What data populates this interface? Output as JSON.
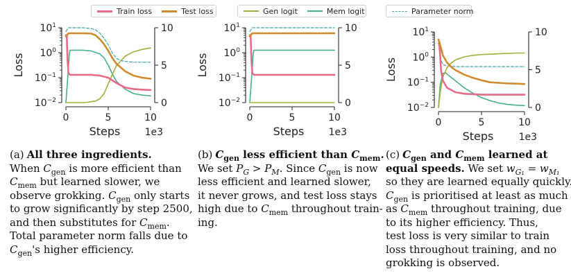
{
  "legend_groups": [
    {
      "items": [
        {
          "label": "Train loss",
          "color": "#e86a8a",
          "style": "solid"
        },
        {
          "label": "Test loss",
          "color": "#d08a2e",
          "style": "solid"
        }
      ]
    },
    {
      "items": [
        {
          "label": "Gen logit",
          "color": "#a3ad3c",
          "style": "solid"
        },
        {
          "label": "Mem logit",
          "color": "#45b384",
          "style": "solid"
        }
      ]
    },
    {
      "items": [
        {
          "label": "Parameter norm",
          "color": "#3ba7a8",
          "style": "dashed"
        }
      ]
    }
  ],
  "chart_data": [
    {
      "type": "line",
      "xlabel": "Steps",
      "x_multiplier": "1e3",
      "ylabel": "Loss",
      "xlim": [
        0,
        10000
      ],
      "xticks": [
        "0",
        "5",
        "10"
      ],
      "yscale_left": "log",
      "ylim_left": [
        0.01,
        10
      ],
      "yticks_left": [
        "10^-2",
        "10^-1",
        "10^0",
        "10^1"
      ],
      "ylim_right": [
        0,
        10
      ],
      "yticks_right": [
        "0",
        "5",
        "10"
      ],
      "series": [
        {
          "name": "Train loss",
          "axis": "left",
          "x": [
            0,
            100,
            200,
            300,
            500,
            1000,
            2000,
            3000,
            4000,
            5000,
            6000,
            7000,
            8000,
            9000,
            10000
          ],
          "values": [
            5.0,
            5.0,
            0.5,
            0.15,
            0.13,
            0.13,
            0.13,
            0.13,
            0.12,
            0.1,
            0.06,
            0.04,
            0.035,
            0.033,
            0.032
          ]
        },
        {
          "name": "Test loss",
          "axis": "left",
          "x": [
            0,
            300,
            1000,
            2000,
            3000,
            3500,
            4000,
            4500,
            5000,
            5500,
            6000,
            7000,
            8000,
            9000,
            10000
          ],
          "values": [
            4.5,
            6.0,
            6.0,
            6.0,
            5.8,
            5.0,
            3.5,
            2.2,
            1.2,
            0.6,
            0.35,
            0.18,
            0.12,
            0.1,
            0.09
          ]
        },
        {
          "name": "Gen logit",
          "axis": "right",
          "x": [
            0,
            1000,
            2000,
            2500,
            3500,
            4000,
            4500,
            5000,
            5500,
            6000,
            7000,
            8000,
            9000,
            10000
          ],
          "values": [
            0,
            0,
            0,
            0.05,
            0.2,
            0.5,
            1.2,
            2.5,
            3.8,
            5.0,
            6.2,
            6.8,
            7.1,
            7.3
          ]
        },
        {
          "name": "Mem logit",
          "axis": "right",
          "x": [
            0,
            200,
            400,
            500,
            1000,
            2000,
            3000,
            4000,
            4500,
            5000,
            5500,
            6000,
            7000,
            8000,
            9000,
            10000
          ],
          "values": [
            0,
            3.0,
            6.5,
            7.0,
            7.0,
            7.0,
            6.9,
            6.5,
            6.0,
            5.0,
            3.8,
            2.8,
            1.8,
            1.2,
            1.0,
            0.9
          ]
        },
        {
          "name": "Parameter norm",
          "axis": "right",
          "x": [
            0,
            300,
            1000,
            2000,
            3000,
            3500,
            4000,
            4500,
            5000,
            5500,
            6000,
            6500,
            7000,
            8000,
            9000,
            10000
          ],
          "values": [
            9.5,
            10.0,
            10.0,
            10.0,
            9.9,
            9.7,
            9.3,
            8.6,
            7.7,
            6.6,
            5.9,
            5.6,
            5.5,
            5.4,
            5.4,
            5.4
          ]
        }
      ]
    },
    {
      "type": "line",
      "xlabel": "Steps",
      "x_multiplier": "1e3",
      "ylabel": "Loss",
      "xlim": [
        0,
        10000
      ],
      "xticks": [
        "0",
        "5",
        "10"
      ],
      "yscale_left": "log",
      "ylim_left": [
        0.01,
        10
      ],
      "yticks_left": [
        "10^-2",
        "10^-1",
        "10^0",
        "10^1"
      ],
      "ylim_right": [
        0,
        10
      ],
      "yticks_right": [
        "0",
        "5",
        "10"
      ],
      "series": [
        {
          "name": "Train loss",
          "axis": "left",
          "x": [
            0,
            100,
            200,
            300,
            500,
            1000,
            5000,
            10000
          ],
          "values": [
            5.0,
            5.0,
            0.5,
            0.15,
            0.13,
            0.13,
            0.13,
            0.13
          ]
        },
        {
          "name": "Test loss",
          "axis": "left",
          "x": [
            0,
            300,
            1000,
            5000,
            10000
          ],
          "values": [
            4.5,
            6.0,
            6.0,
            6.0,
            6.0
          ]
        },
        {
          "name": "Gen logit",
          "axis": "right",
          "x": [
            0,
            5000,
            10000
          ],
          "values": [
            0,
            0,
            0
          ]
        },
        {
          "name": "Mem logit",
          "axis": "right",
          "x": [
            0,
            200,
            400,
            500,
            1000,
            5000,
            10000
          ],
          "values": [
            0,
            3.0,
            6.5,
            7.0,
            7.0,
            7.0,
            7.0
          ]
        },
        {
          "name": "Parameter norm",
          "axis": "right",
          "x": [
            0,
            300,
            1000,
            5000,
            10000
          ],
          "values": [
            9.5,
            10.0,
            10.0,
            10.0,
            10.0
          ]
        }
      ]
    },
    {
      "type": "line",
      "xlabel": "Steps",
      "x_multiplier": "1e3",
      "ylabel": "Loss",
      "xlim": [
        0,
        10000
      ],
      "xticks": [
        "0",
        "5",
        "10"
      ],
      "yscale_left": "log",
      "ylim_left": [
        0.01,
        10
      ],
      "yticks_left": [
        "10^-2",
        "10^-1",
        "10^0",
        "10^1"
      ],
      "ylim_right": [
        0,
        10
      ],
      "yticks_right": [
        "0",
        "5",
        "10"
      ],
      "series": [
        {
          "name": "Train loss",
          "axis": "left",
          "x": [
            0,
            100,
            200,
            300,
            500,
            1000,
            2000,
            3000,
            5000,
            7000,
            10000
          ],
          "values": [
            5.0,
            4.0,
            1.0,
            0.3,
            0.12,
            0.06,
            0.04,
            0.035,
            0.032,
            0.032,
            0.032
          ]
        },
        {
          "name": "Test loss",
          "axis": "left",
          "x": [
            0,
            200,
            500,
            1000,
            1500,
            2000,
            3000,
            4000,
            5000,
            6000,
            7000,
            8000,
            9000,
            10000
          ],
          "values": [
            5.0,
            3.0,
            1.2,
            0.6,
            0.4,
            0.3,
            0.2,
            0.15,
            0.12,
            0.1,
            0.095,
            0.09,
            0.088,
            0.085
          ]
        },
        {
          "name": "Gen logit",
          "axis": "right",
          "x": [
            0,
            200,
            500,
            1000,
            1500,
            2000,
            3000,
            4000,
            5000,
            6000,
            7000,
            8000,
            9000,
            10000
          ],
          "values": [
            0,
            2.0,
            4.0,
            5.3,
            5.9,
            6.3,
            6.7,
            6.9,
            7.0,
            7.05,
            7.1,
            7.15,
            7.2,
            7.2
          ]
        },
        {
          "name": "Mem logit",
          "axis": "right",
          "x": [
            0,
            200,
            500,
            800,
            1000,
            2000,
            3000,
            4000,
            5000,
            6000,
            7000,
            8000,
            9000,
            10000
          ],
          "values": [
            0,
            3.0,
            4.5,
            4.6,
            4.4,
            3.5,
            2.6,
            1.9,
            1.3,
            0.9,
            0.6,
            0.4,
            0.3,
            0.25
          ]
        },
        {
          "name": "Parameter norm",
          "axis": "right",
          "x": [
            0,
            200,
            500,
            1000,
            2000,
            3000,
            5000,
            7000,
            10000
          ],
          "values": [
            8.5,
            6.5,
            5.7,
            5.5,
            5.4,
            5.4,
            5.4,
            5.4,
            5.4
          ]
        }
      ]
    }
  ],
  "captions": [
    {
      "tag": "(a)",
      "lines": [
        [
          {
            "t": "All three ingredients.",
            "b": true
          }
        ],
        [
          {
            "t": "When "
          },
          {
            "t": "C",
            "i": true
          },
          {
            "t": "gen",
            "sub": true
          },
          {
            "t": " is more efficient than"
          }
        ],
        [
          {
            "t": "C",
            "i": true
          },
          {
            "t": "mem",
            "sub": true
          },
          {
            "t": " but learned slower, we"
          }
        ],
        [
          {
            "t": "observe grokking. "
          },
          {
            "t": "C",
            "i": true
          },
          {
            "t": "gen",
            "sub": true
          },
          {
            "t": " only starts"
          }
        ],
        [
          {
            "t": "to grow significantly by step 2500,"
          }
        ],
        [
          {
            "t": "and then substitutes for "
          },
          {
            "t": "C",
            "i": true
          },
          {
            "t": "mem",
            "sub": true
          },
          {
            "t": "."
          }
        ],
        [
          {
            "t": "Total parameter norm falls due to"
          }
        ],
        [
          {
            "t": "C",
            "i": true
          },
          {
            "t": "gen",
            "sub": true
          },
          {
            "t": "'s higher efficiency."
          }
        ]
      ]
    },
    {
      "tag": "(b)",
      "lines": [
        [
          {
            "t": "C",
            "i": true,
            "b": true
          },
          {
            "t": "gen",
            "sub": true,
            "b": true
          },
          {
            "t": " less efficient than ",
            "b": true
          },
          {
            "t": "C",
            "i": true,
            "b": true
          },
          {
            "t": "mem",
            "sub": true,
            "b": true
          },
          {
            "t": ".",
            "b": true
          }
        ],
        [
          {
            "t": "We set "
          },
          {
            "t": "P",
            "i": true
          },
          {
            "t": "G",
            "sub": true,
            "i": true
          },
          {
            "t": " > "
          },
          {
            "t": "P",
            "i": true
          },
          {
            "t": "M",
            "sub": true,
            "i": true
          },
          {
            "t": ". Since "
          },
          {
            "t": "C",
            "i": true
          },
          {
            "t": "gen",
            "sub": true
          },
          {
            "t": " is now"
          }
        ],
        [
          {
            "t": "less efficient and learned slower,"
          }
        ],
        [
          {
            "t": "it never grows, and test loss stays"
          }
        ],
        [
          {
            "t": "high due to "
          },
          {
            "t": "C",
            "i": true
          },
          {
            "t": "mem",
            "sub": true
          },
          {
            "t": " throughout train-"
          }
        ],
        [
          {
            "t": "ing."
          }
        ]
      ]
    },
    {
      "tag": "(c)",
      "lines": [
        [
          {
            "t": "C",
            "i": true,
            "b": true
          },
          {
            "t": "gen",
            "sub": true,
            "b": true
          },
          {
            "t": " and ",
            "b": true
          },
          {
            "t": "C",
            "i": true,
            "b": true
          },
          {
            "t": "mem",
            "sub": true,
            "b": true
          },
          {
            "t": " learned at",
            "b": true
          }
        ],
        [
          {
            "t": "equal speeds.",
            "b": true
          },
          {
            "t": " We set "
          },
          {
            "t": "w",
            "i": true
          },
          {
            "t": "G₁",
            "sub": true,
            "i": true
          },
          {
            "t": " = "
          },
          {
            "t": "w",
            "i": true
          },
          {
            "t": "M₁",
            "sub": true,
            "i": true
          }
        ],
        [
          {
            "t": "so they are learned equally quickly."
          }
        ],
        [
          {
            "t": "C",
            "i": true
          },
          {
            "t": "gen",
            "sub": true
          },
          {
            "t": " is prioritised at least as much"
          }
        ],
        [
          {
            "t": "as "
          },
          {
            "t": "C",
            "i": true
          },
          {
            "t": "mem",
            "sub": true
          },
          {
            "t": " throughout training, due"
          }
        ],
        [
          {
            "t": "to its higher efficiency.   Thus,"
          }
        ],
        [
          {
            "t": "test loss is very similar to train"
          }
        ],
        [
          {
            "t": "loss throughout training, and no"
          }
        ],
        [
          {
            "t": "grokking is observed."
          }
        ]
      ]
    }
  ]
}
